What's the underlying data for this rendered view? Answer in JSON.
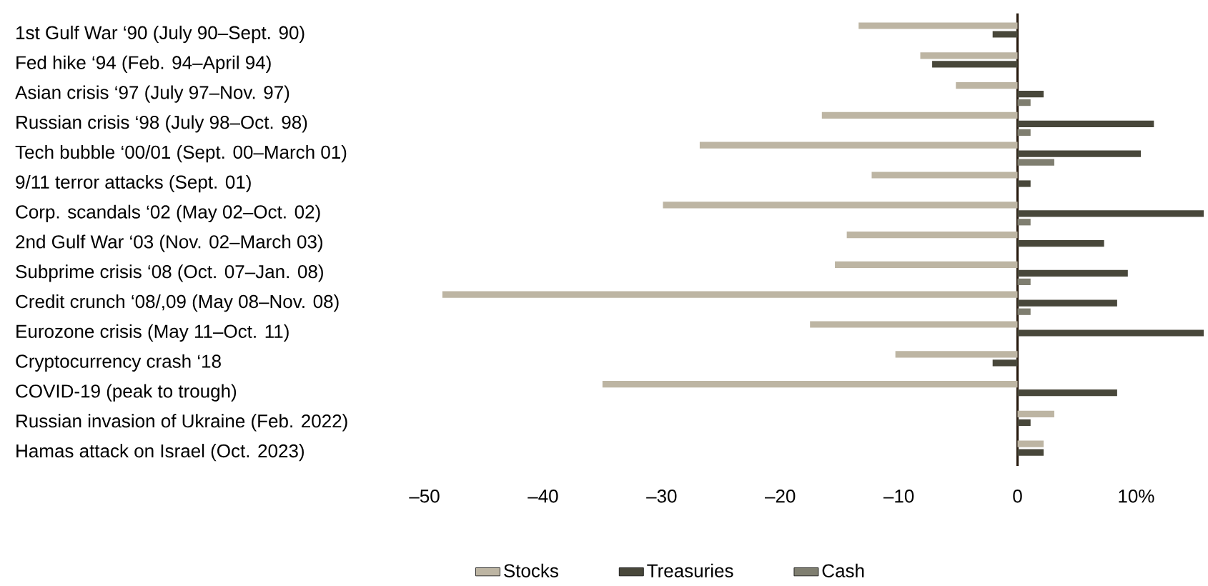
{
  "chart_data": {
    "type": "bar",
    "orientation": "horizontal",
    "categories": [
      "1st Gulf War ‘90 (July 90–Sept. 90)",
      "Fed hike ‘94 (Feb. 94–April 94)",
      "Asian crisis ‘97 (July 97–Nov. 97)",
      "Russian crisis ‘98 (July 98–Oct. 98)",
      "Tech bubble ‘00/01 (Sept. 00–March 01)",
      "9/11 terror attacks (Sept. 01)",
      "Corp. scandals ‘02 (May 02–Oct. 02)",
      "2nd Gulf War ‘03 (Nov. 02–March 03)",
      "Subprime crisis ‘08 (Oct. 07–Jan. 08)",
      "Credit crunch ‘08/,09 (May 08–Nov. 08)",
      "Eurozone crisis (May 11–Oct. 11)",
      "Cryptocurrency crash ‘18",
      "COVID-19 (peak to trough)",
      "Russian invasion of Ukraine (Feb. 2022)",
      "Hamas attack on Israel (Oct. 2023)"
    ],
    "series": [
      {
        "name": "Stocks",
        "color": "#bdb5a3",
        "values": [
          -13.4,
          -8.2,
          -5.2,
          -16.5,
          -26.8,
          -12.3,
          -29.9,
          -14.4,
          -15.4,
          -48.5,
          -17.5,
          -10.3,
          -35.0,
          3.1,
          2.2
        ]
      },
      {
        "name": "Treasuries",
        "color": "#48473a",
        "values": [
          -2.1,
          -7.2,
          2.2,
          11.5,
          10.4,
          1.1,
          15.7,
          7.3,
          9.3,
          8.4,
          15.7,
          -2.1,
          8.4,
          1.1,
          2.2
        ]
      },
      {
        "name": "Cash",
        "color": "#7f7e70",
        "values": [
          null,
          null,
          1.1,
          1.1,
          3.1,
          null,
          1.1,
          null,
          1.1,
          1.1,
          null,
          null,
          null,
          null,
          null
        ]
      }
    ],
    "xlim": [
      -50,
      15.7
    ],
    "xticks": [
      {
        "value": -50,
        "label": "–50"
      },
      {
        "value": -40,
        "label": "–40"
      },
      {
        "value": -30,
        "label": "–30"
      },
      {
        "value": -20,
        "label": "–20"
      },
      {
        "value": -10,
        "label": "–10"
      },
      0,
      {
        "value": 10,
        "label": "10%"
      }
    ],
    "legend": "bottom"
  }
}
